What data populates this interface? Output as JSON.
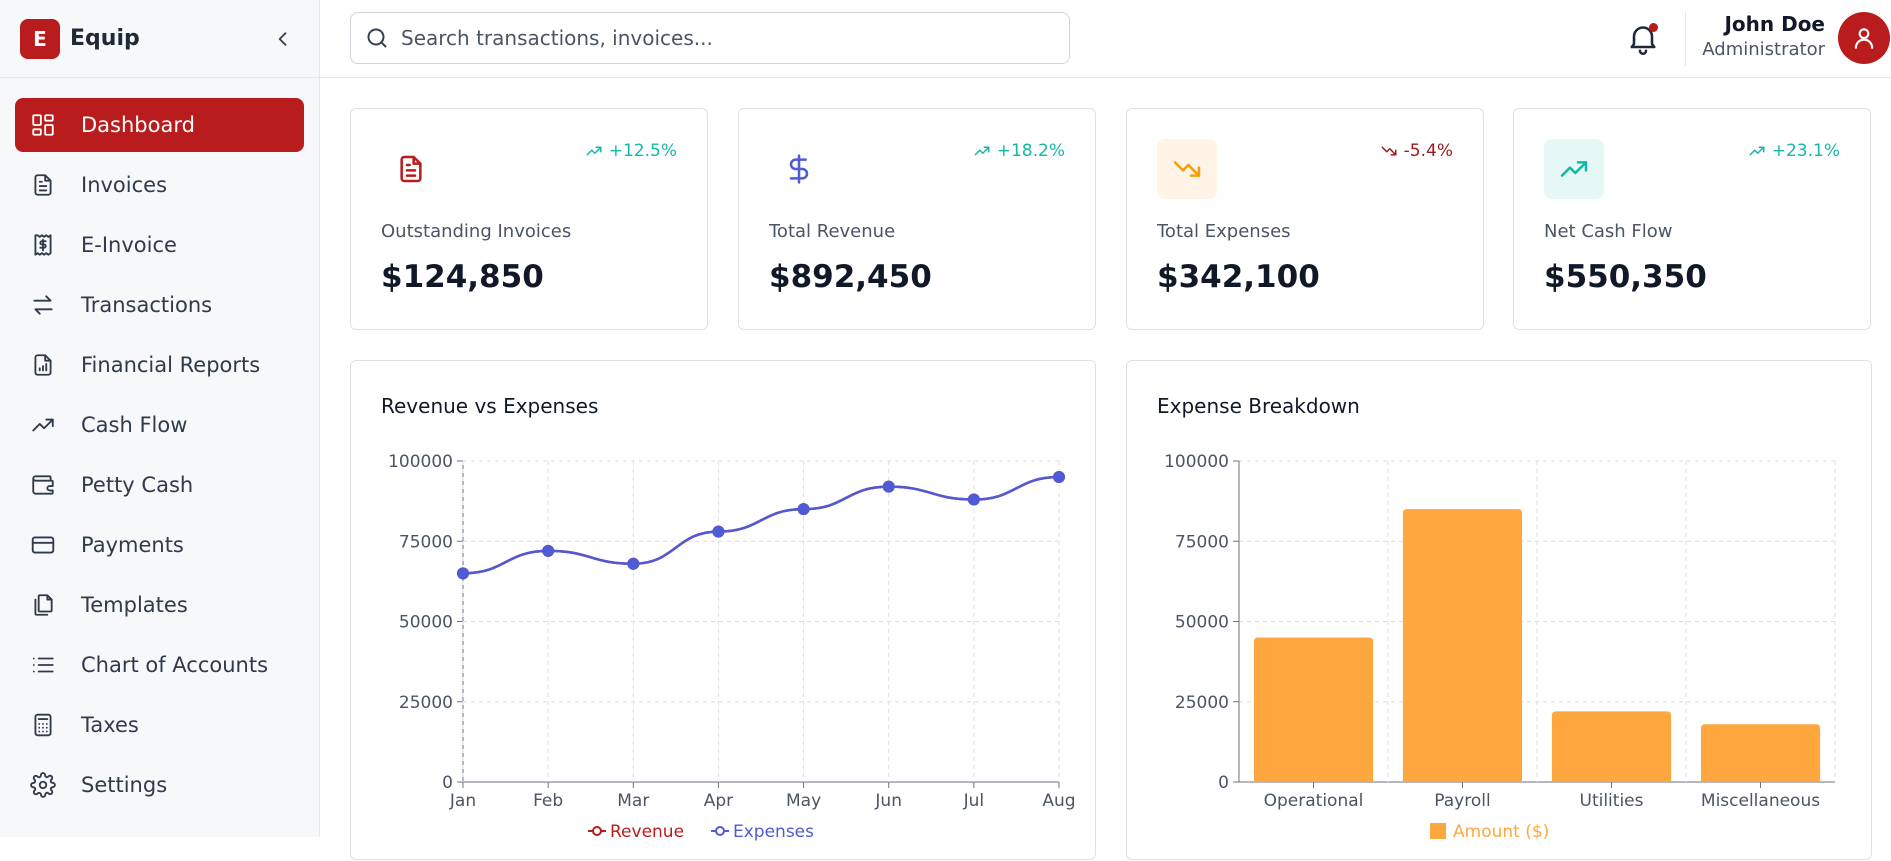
{
  "brand": {
    "logo_letter": "E",
    "name": "Equip"
  },
  "sidebar": {
    "items": [
      {
        "label": "Dashboard",
        "icon": "dashboard-icon",
        "active": true
      },
      {
        "label": "Invoices",
        "icon": "invoice-icon"
      },
      {
        "label": "E-Invoice",
        "icon": "e-invoice-icon"
      },
      {
        "label": "Transactions",
        "icon": "transactions-icon"
      },
      {
        "label": "Financial Reports",
        "icon": "report-icon"
      },
      {
        "label": "Cash Flow",
        "icon": "trend-icon"
      },
      {
        "label": "Petty Cash",
        "icon": "wallet-icon"
      },
      {
        "label": "Payments",
        "icon": "card-icon"
      },
      {
        "label": "Templates",
        "icon": "templates-icon"
      },
      {
        "label": "Chart of Accounts",
        "icon": "list-icon"
      },
      {
        "label": "Taxes",
        "icon": "calculator-icon"
      },
      {
        "label": "Settings",
        "icon": "gear-icon"
      }
    ]
  },
  "header": {
    "search_placeholder": "Search transactions, invoices...",
    "user_name": "John Doe",
    "user_role": "Administrator"
  },
  "stats": [
    {
      "label": "Outstanding Invoices",
      "value": "$124,850",
      "trend": "+12.5%",
      "trend_dir": "up",
      "icon": "document-icon",
      "accent": "#b91c1c"
    },
    {
      "label": "Total Revenue",
      "value": "$892,450",
      "trend": "+18.2%",
      "trend_dir": "up",
      "icon": "dollar-icon",
      "accent": "#4f5bd5"
    },
    {
      "label": "Total Expenses",
      "value": "$342,100",
      "trend": "-5.4%",
      "trend_dir": "down",
      "icon": "trend-down-icon",
      "accent": "#f59e0b"
    },
    {
      "label": "Net Cash Flow",
      "value": "$550,350",
      "trend": "+23.1%",
      "trend_dir": "up",
      "icon": "trend-up-icon",
      "accent": "#14b8a6"
    }
  ],
  "colors": {
    "primary": "#b91c1c",
    "positive": "#14b8a6",
    "negative": "#991b1b",
    "revenue_line": "#b91c1c",
    "expenses_line": "#4f5bd5",
    "bar": "#ffa73f"
  },
  "chart_data": [
    {
      "type": "line",
      "title": "Revenue vs Expenses",
      "x": [
        "Jan",
        "Feb",
        "Mar",
        "Apr",
        "May",
        "Jun",
        "Jul",
        "Aug"
      ],
      "series": [
        {
          "name": "Revenue",
          "values": [
            65000,
            72000,
            68000,
            78000,
            85000,
            92000,
            88000,
            95000
          ]
        },
        {
          "name": "Expenses",
          "values": [
            65000,
            72000,
            68000,
            78000,
            85000,
            92000,
            88000,
            95000
          ]
        }
      ],
      "yticks": [
        "0",
        "25000",
        "50000",
        "75000",
        "100000"
      ],
      "ylim": [
        0,
        100000
      ],
      "grid": true,
      "legend": "bottom"
    },
    {
      "type": "bar",
      "title": "Expense Breakdown",
      "categories": [
        "Operational",
        "Payroll",
        "Utilities",
        "Miscellaneous"
      ],
      "series": [
        {
          "name": "Amount ($)",
          "values": [
            45000,
            85000,
            22000,
            18000
          ]
        }
      ],
      "yticks": [
        "0",
        "25000",
        "50000",
        "75000",
        "100000"
      ],
      "ylim": [
        0,
        100000
      ],
      "grid": true,
      "legend": "bottom"
    }
  ]
}
